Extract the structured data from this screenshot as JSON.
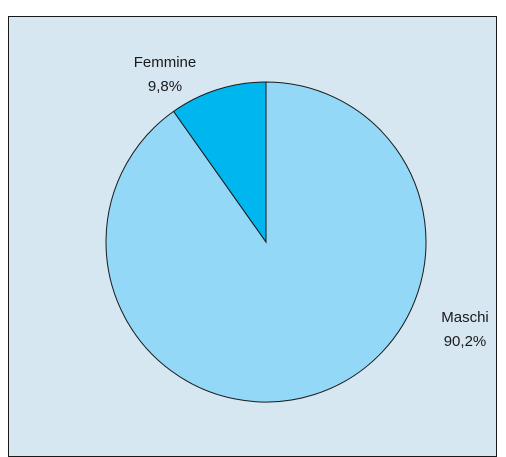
{
  "chart_data": {
    "type": "pie",
    "slices": [
      {
        "label": "Maschi",
        "percent_label": "90,2%",
        "value": 90.2,
        "color": "#93d8f6"
      },
      {
        "label": "Femmine",
        "percent_label": "9,8%",
        "value": 9.8,
        "color": "#00b6ef"
      }
    ],
    "start": "12 o'clock",
    "direction": "clockwise",
    "background_color": "#d6e7f2",
    "slice_border_color": "#1a1a1a"
  }
}
